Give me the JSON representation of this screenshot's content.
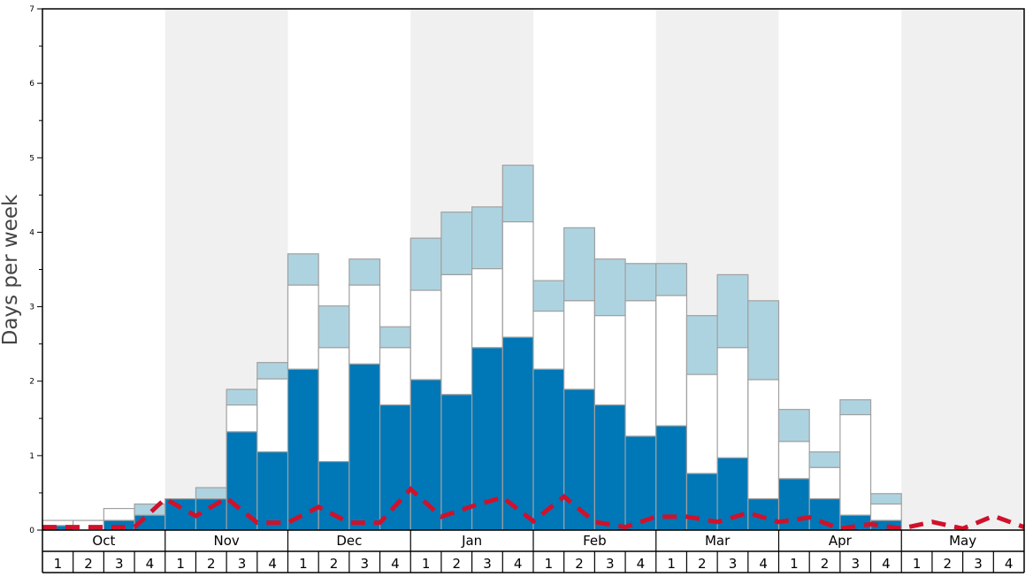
{
  "chart_data": {
    "type": "bar",
    "stacked": true,
    "title": "",
    "xlabel": "",
    "ylabel": "Days per week",
    "ylim": [
      0,
      7
    ],
    "yticks": [
      0,
      1,
      2,
      3,
      4,
      5,
      6,
      7
    ],
    "months": [
      "Oct",
      "Nov",
      "Dec",
      "Jan",
      "Feb",
      "Mar",
      "Apr",
      "May"
    ],
    "weeks": [
      "1",
      "2",
      "3",
      "4"
    ],
    "colors": {
      "bottom": "#0077b6",
      "middle": "#ffffff",
      "top": "#aed3e0",
      "line": "#d0112b",
      "shade": "#f0f0f0"
    },
    "series": [
      {
        "name": "bottom",
        "cumulative_top": [
          0.06,
          0,
          0.13,
          0.2,
          0.42,
          0.42,
          1.32,
          1.05,
          2.16,
          0.92,
          2.23,
          1.68,
          2.02,
          1.82,
          2.45,
          2.59,
          2.16,
          1.89,
          1.68,
          1.26,
          1.4,
          0.76,
          0.97,
          0.42,
          0.69,
          0.42,
          0.2,
          0.13,
          0,
          0,
          0,
          0
        ]
      },
      {
        "name": "middle",
        "cumulative_top": [
          0.13,
          0.13,
          0.29,
          0.2,
          0.42,
          0.42,
          1.68,
          2.03,
          3.29,
          2.45,
          3.29,
          2.45,
          3.22,
          3.43,
          3.51,
          4.14,
          2.94,
          3.08,
          2.88,
          3.08,
          3.15,
          2.09,
          2.45,
          2.02,
          1.19,
          0.84,
          1.55,
          0.35,
          0,
          0,
          0,
          0
        ]
      },
      {
        "name": "top",
        "cumulative_top": [
          0.13,
          0.13,
          0.29,
          0.35,
          0.42,
          0.57,
          1.89,
          2.25,
          3.71,
          3.01,
          3.64,
          2.73,
          3.92,
          4.27,
          4.34,
          4.9,
          3.35,
          4.06,
          3.64,
          3.58,
          3.58,
          2.88,
          3.43,
          3.08,
          1.62,
          1.05,
          1.75,
          0.49,
          0,
          0,
          0,
          0
        ]
      }
    ],
    "line": {
      "name": "dashed",
      "at_week_boundaries": [
        0.04,
        0.04,
        0.04,
        0.04,
        0.42,
        0.19,
        0.43,
        0.1,
        0.1,
        0.31,
        0.1,
        0.1,
        0.55,
        0.18,
        0.32,
        0.44,
        0.12,
        0.45,
        0.11,
        0.04,
        0.18,
        0.18,
        0.11,
        0.23,
        0.11,
        0.17,
        0.02,
        0.08,
        0.02,
        0.11,
        0.02,
        0.19,
        0.04
      ]
    }
  }
}
